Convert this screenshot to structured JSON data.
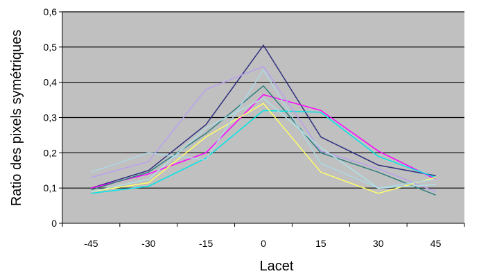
{
  "chart_data": {
    "type": "line",
    "title": "",
    "xlabel": "Lacet",
    "ylabel": "Ratio des pixels symétriques",
    "categories": [
      "-45",
      "-30",
      "-15",
      "0",
      "15",
      "30",
      "45"
    ],
    "ylim": [
      0,
      0.6
    ],
    "yticks": [
      "0",
      "0,1",
      "0,2",
      "0,3",
      "0,4",
      "0,5",
      "0,6"
    ],
    "grid": "horizontal",
    "legend": "none",
    "plot_background": "#c0c0c0",
    "series": [
      {
        "color": "#2e2e7e",
        "values": [
          0.1,
          0.15,
          0.28,
          0.505,
          0.245,
          0.165,
          0.135
        ]
      },
      {
        "color": "#ff00ff",
        "values": [
          0.1,
          0.14,
          0.2,
          0.365,
          0.32,
          0.205,
          0.125
        ]
      },
      {
        "color": "#2e7d7d",
        "values": [
          0.095,
          0.145,
          0.255,
          0.39,
          0.2,
          0.145,
          0.08
        ]
      },
      {
        "color": "#00e5e5",
        "values": [
          0.085,
          0.105,
          0.185,
          0.32,
          0.315,
          0.19,
          0.13
        ]
      },
      {
        "color": "#ffff66",
        "values": [
          0.09,
          0.115,
          0.245,
          0.34,
          0.145,
          0.085,
          0.13
        ]
      },
      {
        "color": "#b9a0ee",
        "values": [
          0.13,
          0.175,
          0.38,
          0.445,
          0.205,
          0.155,
          0.09
        ]
      },
      {
        "color": "#add8e6",
        "values": [
          0.145,
          0.2,
          0.18,
          0.435,
          0.17,
          0.1,
          0.125
        ]
      },
      {
        "color": "#b0e0e6",
        "values": [
          0.09,
          0.125,
          0.27,
          0.355,
          0.215,
          0.1,
          0.11
        ]
      }
    ]
  }
}
